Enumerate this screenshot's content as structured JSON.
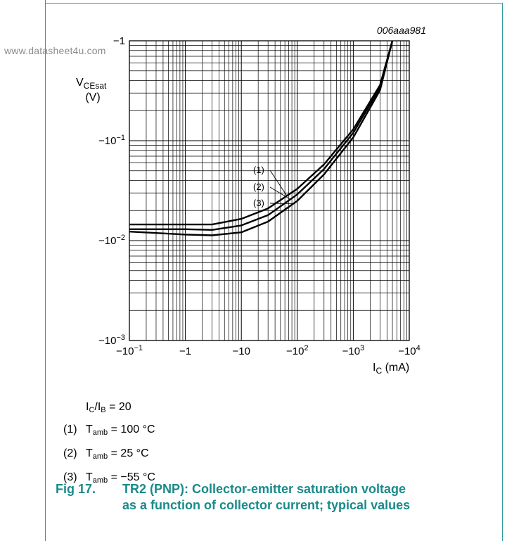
{
  "watermark": "www.datasheet4u.com",
  "chart_data": {
    "type": "line",
    "figure_id": "006aaa981",
    "xscale": "log",
    "yscale": "log",
    "xlim": [
      -0.1,
      -10000
    ],
    "ylim": [
      -0.001,
      -1
    ],
    "x_ticks": [
      {
        "value": -0.1,
        "base": "−10",
        "exp": "−1"
      },
      {
        "value": -1,
        "base": "−1",
        "exp": ""
      },
      {
        "value": -10,
        "base": "−10",
        "exp": ""
      },
      {
        "value": -100,
        "base": "−10",
        "exp": "2"
      },
      {
        "value": -1000,
        "base": "−10",
        "exp": "3"
      },
      {
        "value": -10000,
        "base": "−10",
        "exp": "4"
      }
    ],
    "y_ticks": [
      {
        "value": -1,
        "base": "−1",
        "exp": ""
      },
      {
        "value": -0.1,
        "base": "−10",
        "exp": "−1"
      },
      {
        "value": -0.01,
        "base": "−10",
        "exp": "−2"
      },
      {
        "value": -0.001,
        "base": "−10",
        "exp": "−3"
      }
    ],
    "ylabel": {
      "main": "V",
      "sub": "CEsat",
      "unit": "(V)"
    },
    "xlabel": {
      "main": "I",
      "sub": "C",
      "unit": " (mA)"
    },
    "grid": true,
    "series": [
      {
        "label": "(1)",
        "x": [
          -0.1,
          -1,
          -3,
          -10,
          -30,
          -100,
          -300,
          -1000,
          -3000,
          -5000
        ],
        "y": [
          -0.0145,
          -0.0145,
          -0.0145,
          -0.0165,
          -0.021,
          -0.033,
          -0.058,
          -0.13,
          -0.36,
          -1.0
        ]
      },
      {
        "label": "(2)",
        "x": [
          -0.1,
          -1,
          -3,
          -10,
          -30,
          -100,
          -300,
          -1000,
          -3000,
          -5000
        ],
        "y": [
          -0.013,
          -0.013,
          -0.0128,
          -0.0142,
          -0.018,
          -0.029,
          -0.052,
          -0.12,
          -0.34,
          -1.0
        ]
      },
      {
        "label": "(3)",
        "x": [
          -0.1,
          -1,
          -3,
          -10,
          -30,
          -100,
          -300,
          -1000,
          -3000,
          -5000
        ],
        "y": [
          -0.0123,
          -0.0115,
          -0.0113,
          -0.0121,
          -0.0155,
          -0.025,
          -0.046,
          -0.108,
          -0.32,
          -1.0
        ]
      }
    ]
  },
  "legend": {
    "condition": {
      "a": "I",
      "a_sub": "C",
      "slash": "/I",
      "b_sub": "B",
      "rest": " = 20"
    },
    "items": [
      {
        "num": "(1)",
        "t": "T",
        "t_sub": "amb",
        "value": " = 100 °C"
      },
      {
        "num": "(2)",
        "t": "T",
        "t_sub": "amb",
        "value": " = 25 °C"
      },
      {
        "num": "(3)",
        "t": "T",
        "t_sub": "amb",
        "value": " = −55 °C"
      }
    ]
  },
  "caption": {
    "number": "Fig 17.",
    "line1": "TR2 (PNP): Collector-emitter saturation voltage",
    "line2": "as a function of collector current; typical values"
  }
}
